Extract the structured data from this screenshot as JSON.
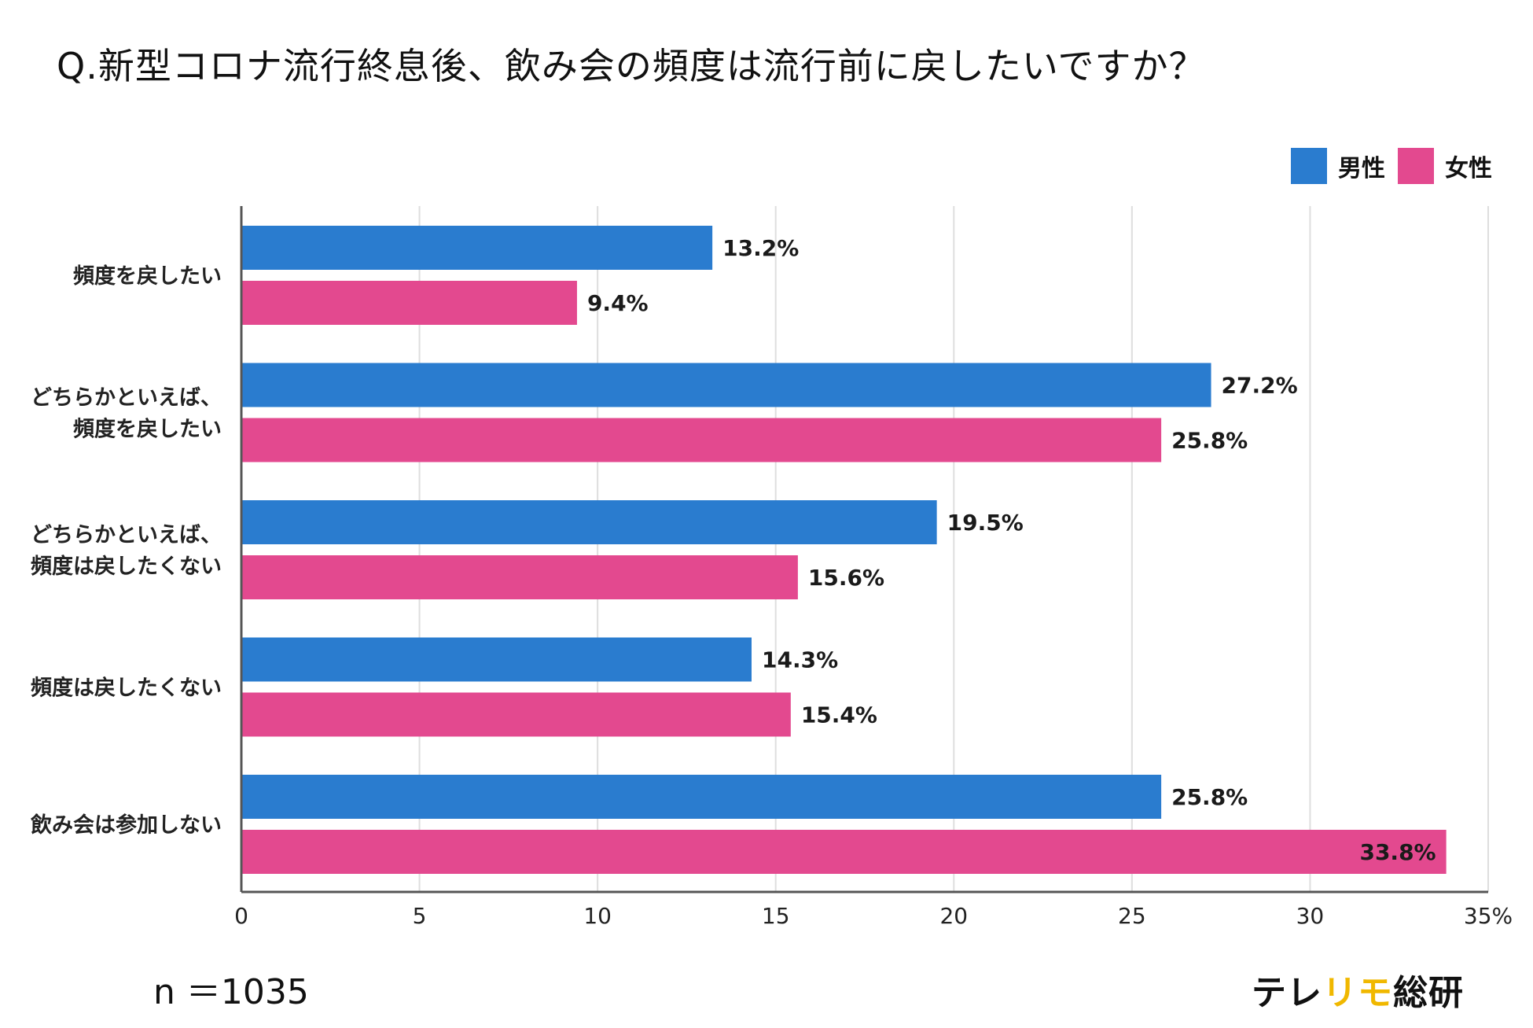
{
  "title": "Q.新型コロナ流行終息後、飲み会の頻度は流行前に戻したいですか？",
  "sample_size": "n ＝1035",
  "brand": {
    "part1": "テレ",
    "part2": "リモ",
    "part3": "総研"
  },
  "colors": {
    "male": "#2a7ccf",
    "female": "#e3498f",
    "axis": "#555555",
    "grid": "#dedede"
  },
  "chart_data": {
    "type": "bar",
    "orientation": "horizontal",
    "title": "Q.新型コロナ流行終息後、飲み会の頻度は流行前に戻したいですか？",
    "categories": [
      [
        "頻度を戻したい"
      ],
      [
        "どちらかといえば、",
        "頻度を戻したい"
      ],
      [
        "どちらかといえば、",
        "頻度は戻したくない"
      ],
      [
        "頻度は戻したくない"
      ],
      [
        "飲み会は参加しない"
      ]
    ],
    "series": [
      {
        "name": "男性",
        "values": [
          13.2,
          27.2,
          19.5,
          14.3,
          25.8
        ],
        "labels": [
          "13.2%",
          "27.2%",
          "19.5%",
          "14.3%",
          "25.8%"
        ]
      },
      {
        "name": "女性",
        "values": [
          9.4,
          25.8,
          15.6,
          15.4,
          33.8
        ],
        "labels": [
          "9.4%",
          "25.8%",
          "15.6%",
          "15.4%",
          "33.8%"
        ]
      }
    ],
    "xlim": [
      0,
      35
    ],
    "xticks": [
      "0",
      "5",
      "10",
      "15",
      "20",
      "25",
      "30",
      "35%"
    ],
    "xlabel": "",
    "ylabel": "",
    "grid": true,
    "legend_position": "top-right"
  }
}
